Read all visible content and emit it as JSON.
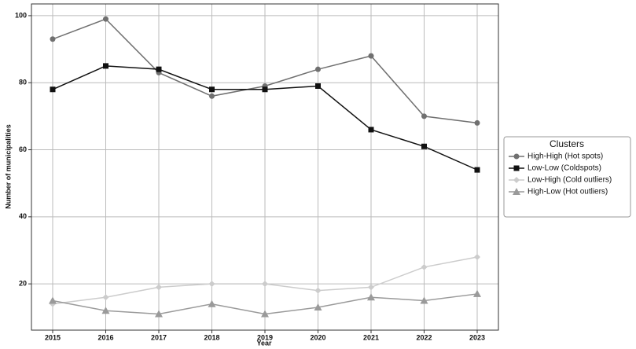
{
  "chart_data": {
    "type": "line",
    "x_label": "Year",
    "y_label": "Number of municipalities",
    "x": [
      2015,
      2016,
      2017,
      2018,
      2019,
      2020,
      2021,
      2022,
      2023
    ],
    "xlim": [
      2014.6,
      2023.4
    ],
    "xticks": [
      2015,
      2016,
      2017,
      2018,
      2019,
      2020,
      2021,
      2022,
      2023
    ],
    "ylim": [
      6.2,
      103.5
    ],
    "yticks": [
      20,
      40,
      60,
      80,
      100
    ],
    "grid": true,
    "legend_title": "Clusters",
    "legend_position": "right",
    "series": [
      {
        "name": "High-High (Hot spots)",
        "color": "#707070",
        "marker": "circle",
        "values": [
          93,
          99,
          83,
          76,
          79,
          84,
          88,
          70,
          68
        ]
      },
      {
        "name": "Low-Low (Coldspots)",
        "color": "#111111",
        "marker": "square",
        "values": [
          78,
          85,
          84,
          78,
          78,
          79,
          66,
          61,
          54
        ]
      },
      {
        "name": "Low-High (Cold outliers)",
        "color": "#cccccc",
        "marker": "diamond",
        "values": [
          14,
          16,
          19,
          20,
          20,
          18,
          19,
          25,
          28
        ]
      },
      {
        "name": "High-Low (Hot outliers)",
        "color": "#9a9a9a",
        "marker": "triangle",
        "values": [
          15,
          12,
          11,
          14,
          11,
          13,
          16,
          15,
          17
        ]
      }
    ]
  }
}
